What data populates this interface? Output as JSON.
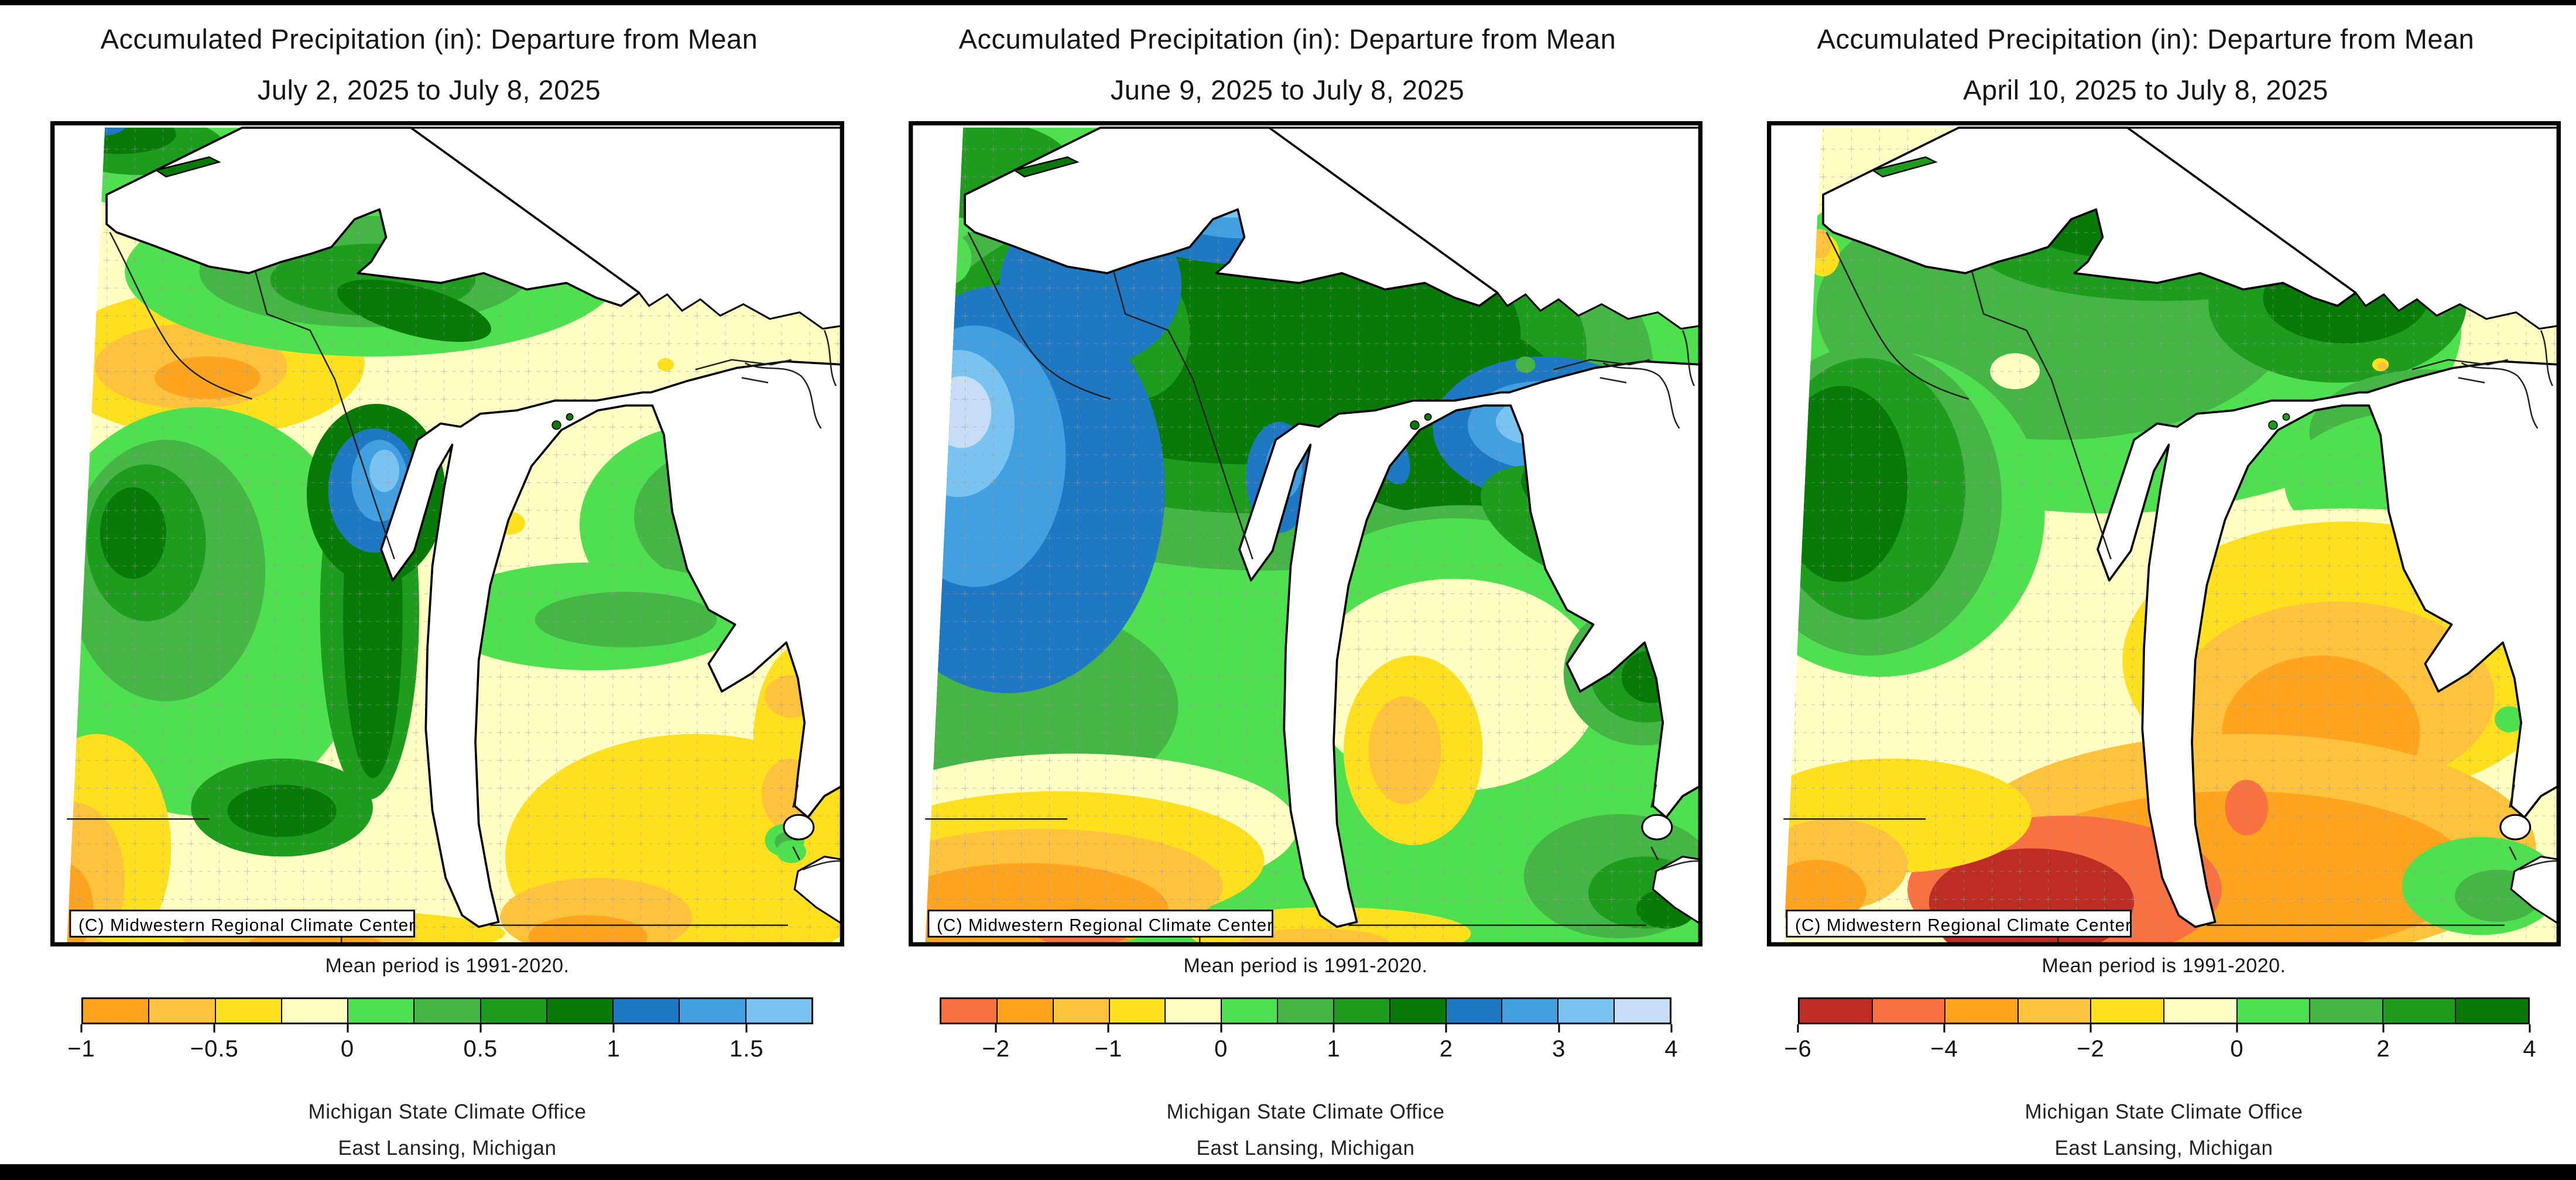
{
  "palette": {
    "orange": "#FFA41E",
    "amber": "#FFC23C",
    "yellow": "#FFE01E",
    "pale_yellow": "#FFFFC3",
    "green_bright": "#4EE04E",
    "green_medium": "#45B545",
    "green": "#1E9C1E",
    "green_dark": "#087A08",
    "blue_steel": "#1E78C3",
    "blue_medium": "#42A0E1",
    "blue_light": "#78C3F0",
    "blue_pale": "#C6DDF5",
    "red_orange": "#F97041",
    "dark_red": "#BE2D23",
    "line_black": "#000000",
    "county_gray": "#9a9a9a",
    "water_white": "#FFFFFF"
  },
  "panels": [
    {
      "title_line1": "Accumulated Precipitation (in): Departure from Mean",
      "title_line2": "July 2, 2025 to July 8, 2025",
      "watermark": "(C) Midwestern Regional Climate Center",
      "caption": "Mean period is 1991-2020.",
      "office_line1": "Michigan State Climate Office",
      "office_line2": "East Lansing, Michigan",
      "legend": {
        "n_cells": 11,
        "cells": [
          "orange",
          "amber",
          "yellow",
          "pale_yellow",
          "green_bright",
          "green_medium",
          "green",
          "green_dark",
          "blue_steel",
          "blue_medium",
          "blue_light"
        ],
        "ticks": [
          {
            "label": "−1",
            "boundary": 0
          },
          {
            "label": "−0.5",
            "boundary": 2
          },
          {
            "label": "0",
            "boundary": 4
          },
          {
            "label": "0.5",
            "boundary": 6
          },
          {
            "label": "1",
            "boundary": 8
          },
          {
            "label": "1.5",
            "boundary": 10
          }
        ]
      }
    },
    {
      "title_line1": "Accumulated Precipitation (in): Departure from Mean",
      "title_line2": "June 9, 2025 to July 8, 2025",
      "watermark": "(C) Midwestern Regional Climate Center",
      "caption": "Mean period is 1991-2020.",
      "office_line1": "Michigan State Climate Office",
      "office_line2": "East Lansing, Michigan",
      "legend": {
        "n_cells": 13,
        "cells": [
          "red_orange",
          "orange",
          "amber",
          "yellow",
          "pale_yellow",
          "green_bright",
          "green_medium",
          "green",
          "green_dark",
          "blue_steel",
          "blue_medium",
          "blue_light",
          "blue_pale"
        ],
        "ticks": [
          {
            "label": "−2",
            "boundary": 1
          },
          {
            "label": "−1",
            "boundary": 3
          },
          {
            "label": "0",
            "boundary": 5
          },
          {
            "label": "1",
            "boundary": 7
          },
          {
            "label": "2",
            "boundary": 9
          },
          {
            "label": "3",
            "boundary": 11
          },
          {
            "label": "4",
            "boundary": 13
          }
        ]
      }
    },
    {
      "title_line1": "Accumulated Precipitation (in): Departure from Mean",
      "title_line2": "April 10, 2025 to July 8, 2025",
      "watermark": "(C) Midwestern Regional Climate Center",
      "caption": "Mean period is 1991-2020.",
      "office_line1": "Michigan State Climate Office",
      "office_line2": "East Lansing, Michigan",
      "legend": {
        "n_cells": 10,
        "cells": [
          "dark_red",
          "red_orange",
          "orange",
          "amber",
          "yellow",
          "pale_yellow",
          "green_bright",
          "green_medium",
          "green",
          "green_dark"
        ],
        "ticks": [
          {
            "label": "−6",
            "boundary": 0
          },
          {
            "label": "−4",
            "boundary": 2
          },
          {
            "label": "−2",
            "boundary": 4
          },
          {
            "label": "0",
            "boundary": 6
          },
          {
            "label": "2",
            "boundary": 8
          },
          {
            "label": "4",
            "boundary": 10
          }
        ]
      }
    }
  ],
  "chart_data": [
    {
      "type": "heatmap",
      "title": "Accumulated Precipitation (in): Departure from Mean",
      "subtitle": "July 2, 2025 to July 8, 2025",
      "region": "Michigan and surrounding Great Lakes states",
      "units": "inches departure from 1991-2020 mean",
      "scale_breaks": [
        -1,
        -0.75,
        -0.5,
        -0.25,
        0,
        0.25,
        0.5,
        0.75,
        1,
        1.25,
        1.5,
        1.75
      ],
      "labeled_ticks": [
        -1,
        -0.5,
        0,
        0.5,
        1,
        1.5
      ],
      "legend_position": "bottom",
      "pattern_summary": "Blue maximum (+1 to +1.75) over Green Bay/Door Peninsula; dark green along western Lake Michigan shore and Upper Peninsula; yellow to orange deficits (-0.25 to -1) in southeastern Lower Michigan, northwest Wisconsin and southwest corner"
    },
    {
      "type": "heatmap",
      "title": "Accumulated Precipitation (in): Departure from Mean",
      "subtitle": "June 9, 2025 to July 8, 2025",
      "region": "Michigan and surrounding Great Lakes states",
      "units": "inches departure from 1991-2020 mean",
      "scale_breaks": [
        -2.5,
        -2,
        -1.5,
        -1,
        -0.5,
        0,
        0.5,
        1,
        1.5,
        2,
        2.5,
        3,
        3.5,
        4
      ],
      "labeled_ticks": [
        -2,
        -1,
        0,
        1,
        2,
        3,
        4
      ],
      "legend_position": "bottom",
      "pattern_summary": "Large +2 to +4 blue surplus over northern Wisconsin/western Upper Peninsula and northern Lake Huron; dark green across the north; orange to red-orange deficits (-1.5 to -2.5) in southwest Wisconsin/Illinois; green surplus in the Thumb and southeast"
    },
    {
      "type": "heatmap",
      "title": "Accumulated Precipitation (in): Departure from Mean",
      "subtitle": "April 10, 2025 to July 8, 2025",
      "region": "Michigan and surrounding Great Lakes states",
      "units": "inches departure from 1991-2020 mean",
      "scale_breaks": [
        -6,
        -5,
        -4,
        -3,
        -2,
        -1,
        0,
        1,
        2,
        3,
        4
      ],
      "labeled_ticks": [
        -6,
        -4,
        -2,
        0,
        2,
        4
      ],
      "legend_position": "bottom",
      "pattern_summary": "Green surplus (+1 to +4) over the Upper Peninsula and Minnesota; yellow-orange deficits (-1 to -3) across the central and southern Lower Peninsula; dark red minimum (-5 to -6) in southeastern Wisconsin/northern Illinois; small green pockets near Lake Erie"
    }
  ]
}
